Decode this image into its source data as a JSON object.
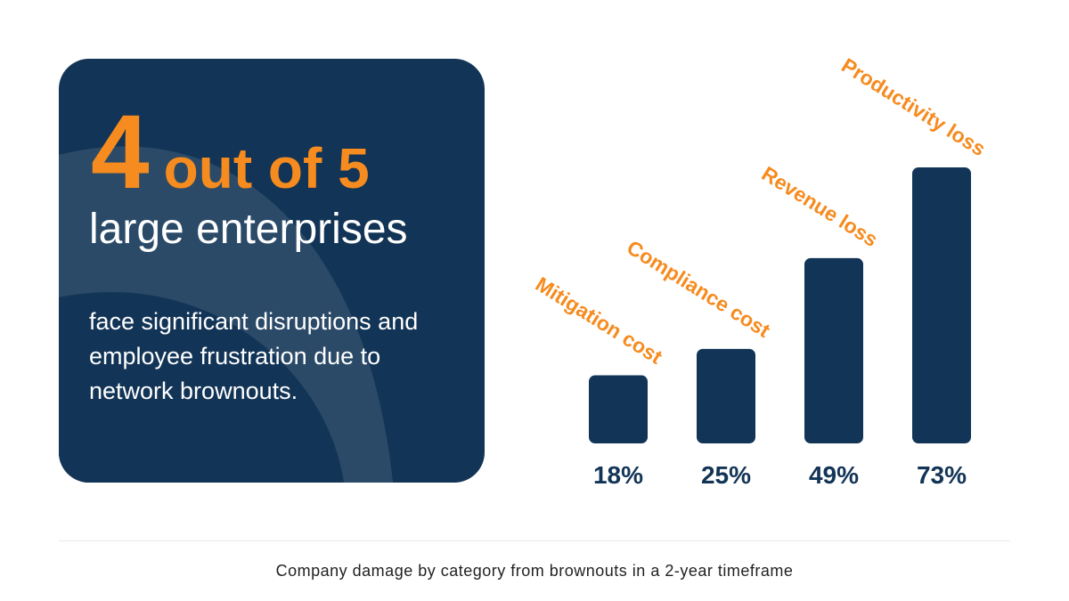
{
  "headline": {
    "number": "4",
    "rest": "out of 5",
    "subject": "large enterprises",
    "description": "face significant disruptions and employee frustration due to network brownouts."
  },
  "caption": "Company damage by category from brownouts in a 2-year timeframe",
  "colors": {
    "navy": "#123456",
    "orange": "#f68b1f",
    "arc": "#2b4a68"
  },
  "chart_data": {
    "type": "bar",
    "title": "Company damage by category from brownouts in a 2-year timeframe",
    "categories": [
      "Mitigation cost",
      "Compliance cost",
      "Revenue loss",
      "Productivity loss"
    ],
    "values": [
      18,
      25,
      49,
      73
    ],
    "value_labels": [
      "18%",
      "25%",
      "49%",
      "73%"
    ],
    "unit": "%",
    "ylim": [
      0,
      80
    ],
    "grid": false,
    "legend": "none"
  }
}
